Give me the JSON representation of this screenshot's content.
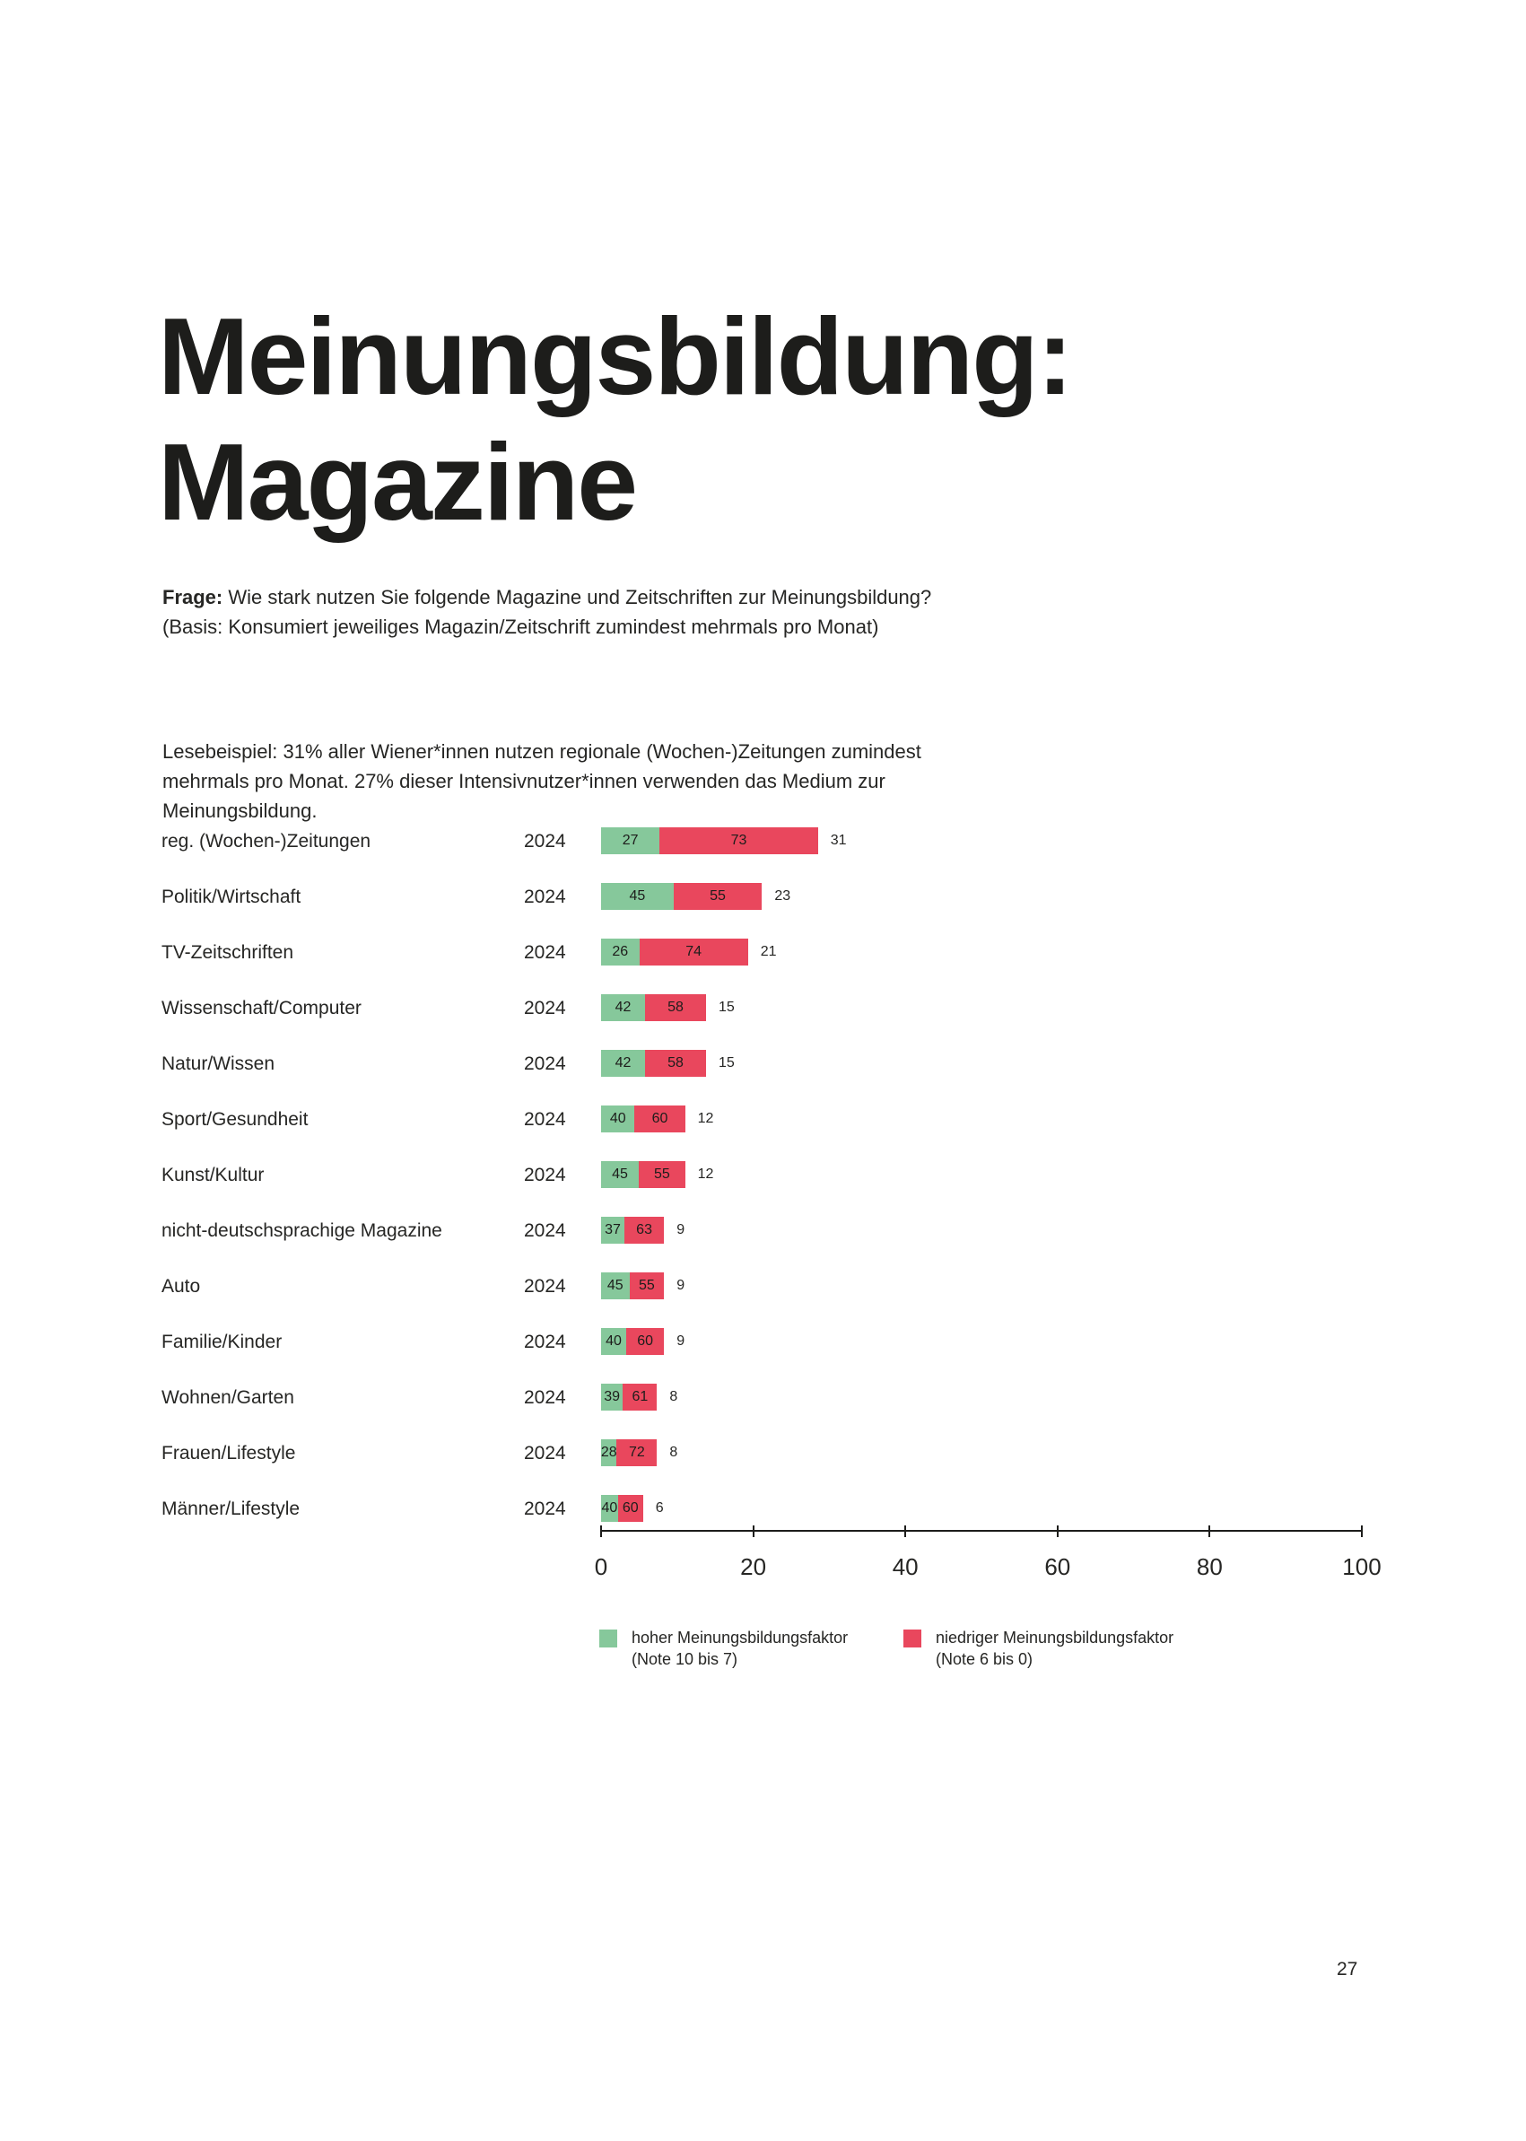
{
  "page": {
    "title_lines": [
      "Meinungsbildung:",
      "Magazine"
    ],
    "page_number": "27"
  },
  "question": {
    "label": "Frage:",
    "lines": [
      "Wie stark nutzen Sie folgende Magazine und Zeitschriften zur Meinungsbildung?",
      "(Basis: Konsumiert jeweiliges Magazin/Zeitschrift zumindest mehrmals pro Monat)"
    ]
  },
  "lesebeispiel": {
    "lines": [
      "Lesebeispiel: 31% aller Wiener*innen nutzen regionale (Wochen-)Zeitungen zumindest",
      "mehrmals pro Monat. 27% dieser Intensivnutzer*innen verwenden das Medium zur",
      "Meinungsbildung."
    ]
  },
  "chart_data": {
    "type": "bar",
    "orientation": "horizontal-stacked",
    "title": "",
    "xlabel": "",
    "ylabel": "",
    "colors": {
      "high": "#86c89b",
      "low": "#e9475d"
    },
    "x_axis": {
      "min": 0,
      "max": 100,
      "ticks": [
        0,
        20,
        40,
        60,
        80,
        100
      ]
    },
    "rows": [
      {
        "category": "reg. (Wochen-)Zeitungen",
        "year": "2024",
        "high_pct": 27,
        "low_pct": 73,
        "total": 31
      },
      {
        "category": "Politik/Wirtschaft",
        "year": "2024",
        "high_pct": 45,
        "low_pct": 55,
        "total": 23
      },
      {
        "category": "TV-Zeitschriften",
        "year": "2024",
        "high_pct": 26,
        "low_pct": 74,
        "total": 21
      },
      {
        "category": "Wissenschaft/Computer",
        "year": "2024",
        "high_pct": 42,
        "low_pct": 58,
        "total": 15
      },
      {
        "category": "Natur/Wissen",
        "year": "2024",
        "high_pct": 42,
        "low_pct": 58,
        "total": 15
      },
      {
        "category": "Sport/Gesundheit",
        "year": "2024",
        "high_pct": 40,
        "low_pct": 60,
        "total": 12
      },
      {
        "category": "Kunst/Kultur",
        "year": "2024",
        "high_pct": 45,
        "low_pct": 55,
        "total": 12
      },
      {
        "category": "nicht-deutschsprachige Magazine",
        "year": "2024",
        "high_pct": 37,
        "low_pct": 63,
        "total": 9
      },
      {
        "category": "Auto",
        "year": "2024",
        "high_pct": 45,
        "low_pct": 55,
        "total": 9
      },
      {
        "category": "Familie/Kinder",
        "year": "2024",
        "high_pct": 40,
        "low_pct": 60,
        "total": 9
      },
      {
        "category": "Wohnen/Garten",
        "year": "2024",
        "high_pct": 39,
        "low_pct": 61,
        "total": 8
      },
      {
        "category": "Frauen/Lifestyle",
        "year": "2024",
        "high_pct": 28,
        "low_pct": 72,
        "total": 8
      },
      {
        "category": "Männer/Lifestyle",
        "year": "2024",
        "high_pct": 40,
        "low_pct": 60,
        "total": 6
      }
    ],
    "legend": [
      {
        "swatch": "high",
        "label": "hoher Meinungsbildungsfaktor",
        "sublabel": "(Note 10 bis 7)"
      },
      {
        "swatch": "low",
        "label": "niedriger Meinungsbildungsfaktor",
        "sublabel": "(Note 6 bis 0)"
      }
    ]
  }
}
